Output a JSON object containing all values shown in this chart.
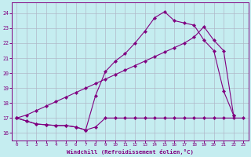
{
  "bg_color": "#c5edf0",
  "line_color": "#800080",
  "grid_color": "#b0b8c8",
  "xlim": [
    -0.5,
    23.5
  ],
  "ylim": [
    15.5,
    24.7
  ],
  "yticks": [
    16,
    17,
    18,
    19,
    20,
    21,
    22,
    23,
    24
  ],
  "xticks": [
    0,
    1,
    2,
    3,
    4,
    5,
    6,
    7,
    8,
    9,
    10,
    11,
    12,
    13,
    14,
    15,
    16,
    17,
    18,
    19,
    20,
    21,
    22,
    23
  ],
  "xlabel": "Windchill (Refroidissement éolien,°C)",
  "line1_x": [
    0,
    1,
    2,
    3,
    4,
    5,
    6,
    7,
    8,
    9,
    10,
    11,
    12,
    13,
    14,
    15,
    16,
    17,
    18,
    19,
    20,
    21,
    22,
    23
  ],
  "line1_y": [
    17.0,
    16.8,
    16.6,
    16.55,
    16.5,
    16.5,
    16.4,
    16.2,
    16.4,
    17.0,
    17.0,
    17.0,
    17.0,
    17.0,
    17.0,
    17.0,
    17.0,
    17.0,
    17.0,
    17.0,
    17.0,
    17.0,
    17.0,
    17.0
  ],
  "line2_x": [
    0,
    1,
    2,
    3,
    4,
    5,
    6,
    7,
    8,
    9,
    10,
    11,
    12,
    13,
    14,
    15,
    16,
    17,
    18,
    19,
    20,
    21,
    22
  ],
  "line2_y": [
    17.0,
    16.8,
    16.6,
    16.55,
    16.5,
    16.5,
    16.4,
    16.2,
    18.5,
    20.1,
    20.8,
    21.3,
    22.0,
    22.8,
    23.7,
    24.1,
    23.5,
    23.35,
    23.2,
    22.2,
    21.5,
    18.8,
    17.2
  ],
  "line3_x": [
    0,
    1,
    2,
    3,
    4,
    5,
    6,
    7,
    8,
    9,
    10,
    11,
    12,
    13,
    14,
    15,
    16,
    17,
    18,
    19,
    20,
    21,
    22
  ],
  "line3_y": [
    17.0,
    17.2,
    17.5,
    17.8,
    18.1,
    18.4,
    18.7,
    19.0,
    19.3,
    19.6,
    19.9,
    20.2,
    20.5,
    20.8,
    21.1,
    21.4,
    21.7,
    22.0,
    22.4,
    23.1,
    22.2,
    21.5,
    17.2
  ]
}
